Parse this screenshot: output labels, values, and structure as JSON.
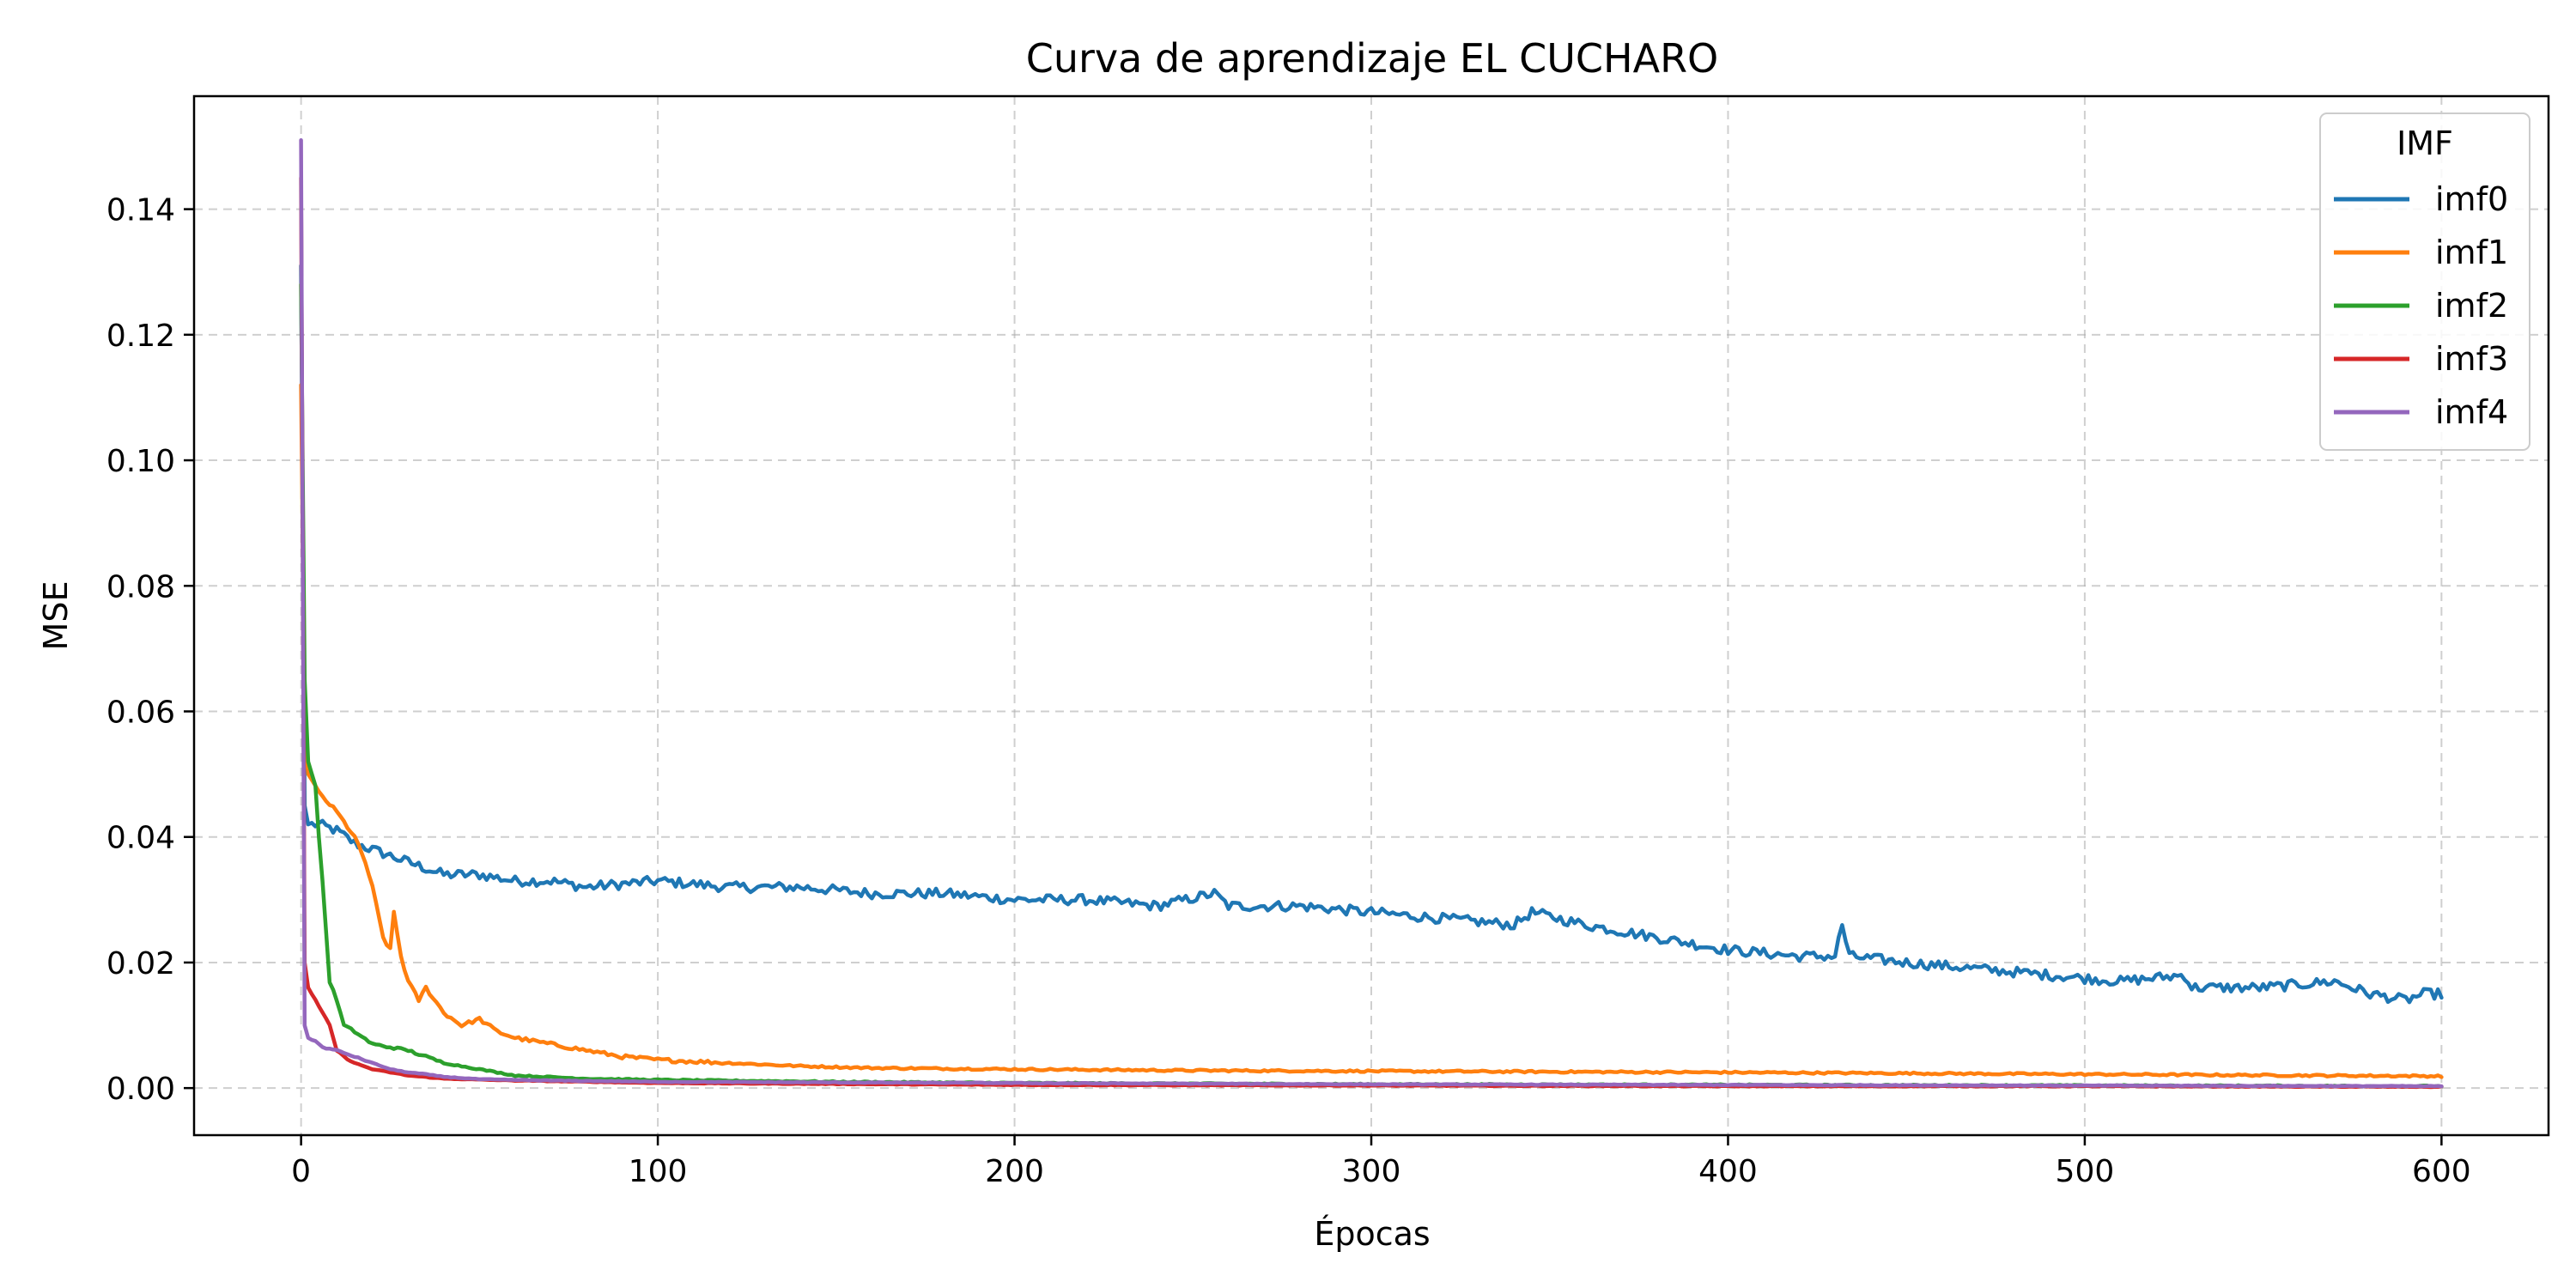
{
  "chart_data": {
    "type": "line",
    "title": "Curva de aprendizaje EL CUCHARO",
    "xlabel": "Épocas",
    "ylabel": "MSE",
    "xlim": [
      -30,
      630
    ],
    "ylim": [
      -0.0075,
      0.158
    ],
    "xticks": [
      0,
      100,
      200,
      300,
      400,
      500,
      600
    ],
    "yticks": [
      0.0,
      0.02,
      0.04,
      0.06,
      0.08,
      0.1,
      0.12,
      0.14
    ],
    "ytick_labels": [
      "0.00",
      "0.02",
      "0.04",
      "0.06",
      "0.08",
      "0.10",
      "0.12",
      "0.14"
    ],
    "grid": true,
    "legend": {
      "title": "IMF",
      "placement": "top-right"
    },
    "series": [
      {
        "name": "imf0",
        "color": "#1f77b4",
        "points": [
          [
            0,
            0.131
          ],
          [
            1,
            0.045
          ],
          [
            2,
            0.042
          ],
          [
            5,
            0.042
          ],
          [
            10,
            0.041
          ],
          [
            15,
            0.039
          ],
          [
            20,
            0.038
          ],
          [
            25,
            0.037
          ],
          [
            30,
            0.036
          ],
          [
            35,
            0.035
          ],
          [
            40,
            0.034
          ],
          [
            50,
            0.034
          ],
          [
            60,
            0.033
          ],
          [
            70,
            0.033
          ],
          [
            80,
            0.032
          ],
          [
            100,
            0.033
          ],
          [
            120,
            0.032
          ],
          [
            140,
            0.032
          ],
          [
            160,
            0.031
          ],
          [
            180,
            0.031
          ],
          [
            200,
            0.03
          ],
          [
            220,
            0.03
          ],
          [
            240,
            0.029
          ],
          [
            256,
            0.031
          ],
          [
            260,
            0.029
          ],
          [
            280,
            0.029
          ],
          [
            300,
            0.028
          ],
          [
            320,
            0.027
          ],
          [
            340,
            0.026
          ],
          [
            345,
            0.028
          ],
          [
            360,
            0.026
          ],
          [
            380,
            0.024
          ],
          [
            400,
            0.022
          ],
          [
            420,
            0.021
          ],
          [
            430,
            0.021
          ],
          [
            432,
            0.026
          ],
          [
            434,
            0.021
          ],
          [
            450,
            0.02
          ],
          [
            470,
            0.019
          ],
          [
            490,
            0.018
          ],
          [
            510,
            0.017
          ],
          [
            528,
            0.018
          ],
          [
            530,
            0.016
          ],
          [
            550,
            0.016
          ],
          [
            570,
            0.017
          ],
          [
            580,
            0.015
          ],
          [
            590,
            0.014
          ],
          [
            595,
            0.015
          ],
          [
            600,
            0.015
          ]
        ],
        "noise": 0.0008
      },
      {
        "name": "imf1",
        "color": "#ff7f0e",
        "points": [
          [
            0,
            0.112
          ],
          [
            1,
            0.058
          ],
          [
            2,
            0.05
          ],
          [
            5,
            0.047
          ],
          [
            10,
            0.044
          ],
          [
            15,
            0.04
          ],
          [
            18,
            0.036
          ],
          [
            20,
            0.032
          ],
          [
            23,
            0.024
          ],
          [
            25,
            0.022
          ],
          [
            26,
            0.028
          ],
          [
            28,
            0.021
          ],
          [
            30,
            0.017
          ],
          [
            33,
            0.014
          ],
          [
            35,
            0.016
          ],
          [
            40,
            0.012
          ],
          [
            45,
            0.01
          ],
          [
            50,
            0.011
          ],
          [
            55,
            0.009
          ],
          [
            60,
            0.008
          ],
          [
            70,
            0.007
          ],
          [
            80,
            0.006
          ],
          [
            90,
            0.005
          ],
          [
            100,
            0.0045
          ],
          [
            120,
            0.004
          ],
          [
            140,
            0.0035
          ],
          [
            160,
            0.0032
          ],
          [
            200,
            0.003
          ],
          [
            250,
            0.0028
          ],
          [
            300,
            0.0027
          ],
          [
            400,
            0.0025
          ],
          [
            500,
            0.0022
          ],
          [
            600,
            0.0019
          ]
        ],
        "noise": 0.0003
      },
      {
        "name": "imf2",
        "color": "#2ca02c",
        "points": [
          [
            0,
            0.128
          ],
          [
            1,
            0.065
          ],
          [
            2,
            0.052
          ],
          [
            4,
            0.048
          ],
          [
            5,
            0.04
          ],
          [
            6,
            0.033
          ],
          [
            8,
            0.017
          ],
          [
            10,
            0.014
          ],
          [
            12,
            0.01
          ],
          [
            15,
            0.009
          ],
          [
            20,
            0.007
          ],
          [
            30,
            0.006
          ],
          [
            40,
            0.004
          ],
          [
            50,
            0.003
          ],
          [
            60,
            0.002
          ],
          [
            80,
            0.0015
          ],
          [
            100,
            0.0013
          ],
          [
            150,
            0.001
          ],
          [
            200,
            0.0008
          ],
          [
            300,
            0.0006
          ],
          [
            400,
            0.0005
          ],
          [
            500,
            0.0004
          ],
          [
            600,
            0.0003
          ]
        ],
        "noise": 0.0002
      },
      {
        "name": "imf3",
        "color": "#d62728",
        "points": [
          [
            0,
            0.145
          ],
          [
            1,
            0.02
          ],
          [
            2,
            0.016
          ],
          [
            4,
            0.014
          ],
          [
            6,
            0.012
          ],
          [
            8,
            0.01
          ],
          [
            10,
            0.006
          ],
          [
            12,
            0.005
          ],
          [
            15,
            0.004
          ],
          [
            20,
            0.003
          ],
          [
            25,
            0.0025
          ],
          [
            30,
            0.002
          ],
          [
            40,
            0.0015
          ],
          [
            60,
            0.0012
          ],
          [
            100,
            0.0008
          ],
          [
            200,
            0.0005
          ],
          [
            300,
            0.0004
          ],
          [
            400,
            0.0003
          ],
          [
            500,
            0.0003
          ],
          [
            600,
            0.0002
          ]
        ],
        "noise": 0.0001
      },
      {
        "name": "imf4",
        "color": "#9467bd",
        "points": [
          [
            0,
            0.151
          ],
          [
            1,
            0.01
          ],
          [
            2,
            0.008
          ],
          [
            4,
            0.0075
          ],
          [
            6,
            0.0065
          ],
          [
            10,
            0.006
          ],
          [
            15,
            0.005
          ],
          [
            20,
            0.004
          ],
          [
            25,
            0.003
          ],
          [
            30,
            0.0025
          ],
          [
            35,
            0.0022
          ],
          [
            40,
            0.0018
          ],
          [
            50,
            0.0014
          ],
          [
            70,
            0.0012
          ],
          [
            100,
            0.001
          ],
          [
            200,
            0.0008
          ],
          [
            300,
            0.0006
          ],
          [
            400,
            0.0005
          ],
          [
            500,
            0.0004
          ],
          [
            600,
            0.0003
          ]
        ],
        "noise": 0.0001
      }
    ]
  }
}
